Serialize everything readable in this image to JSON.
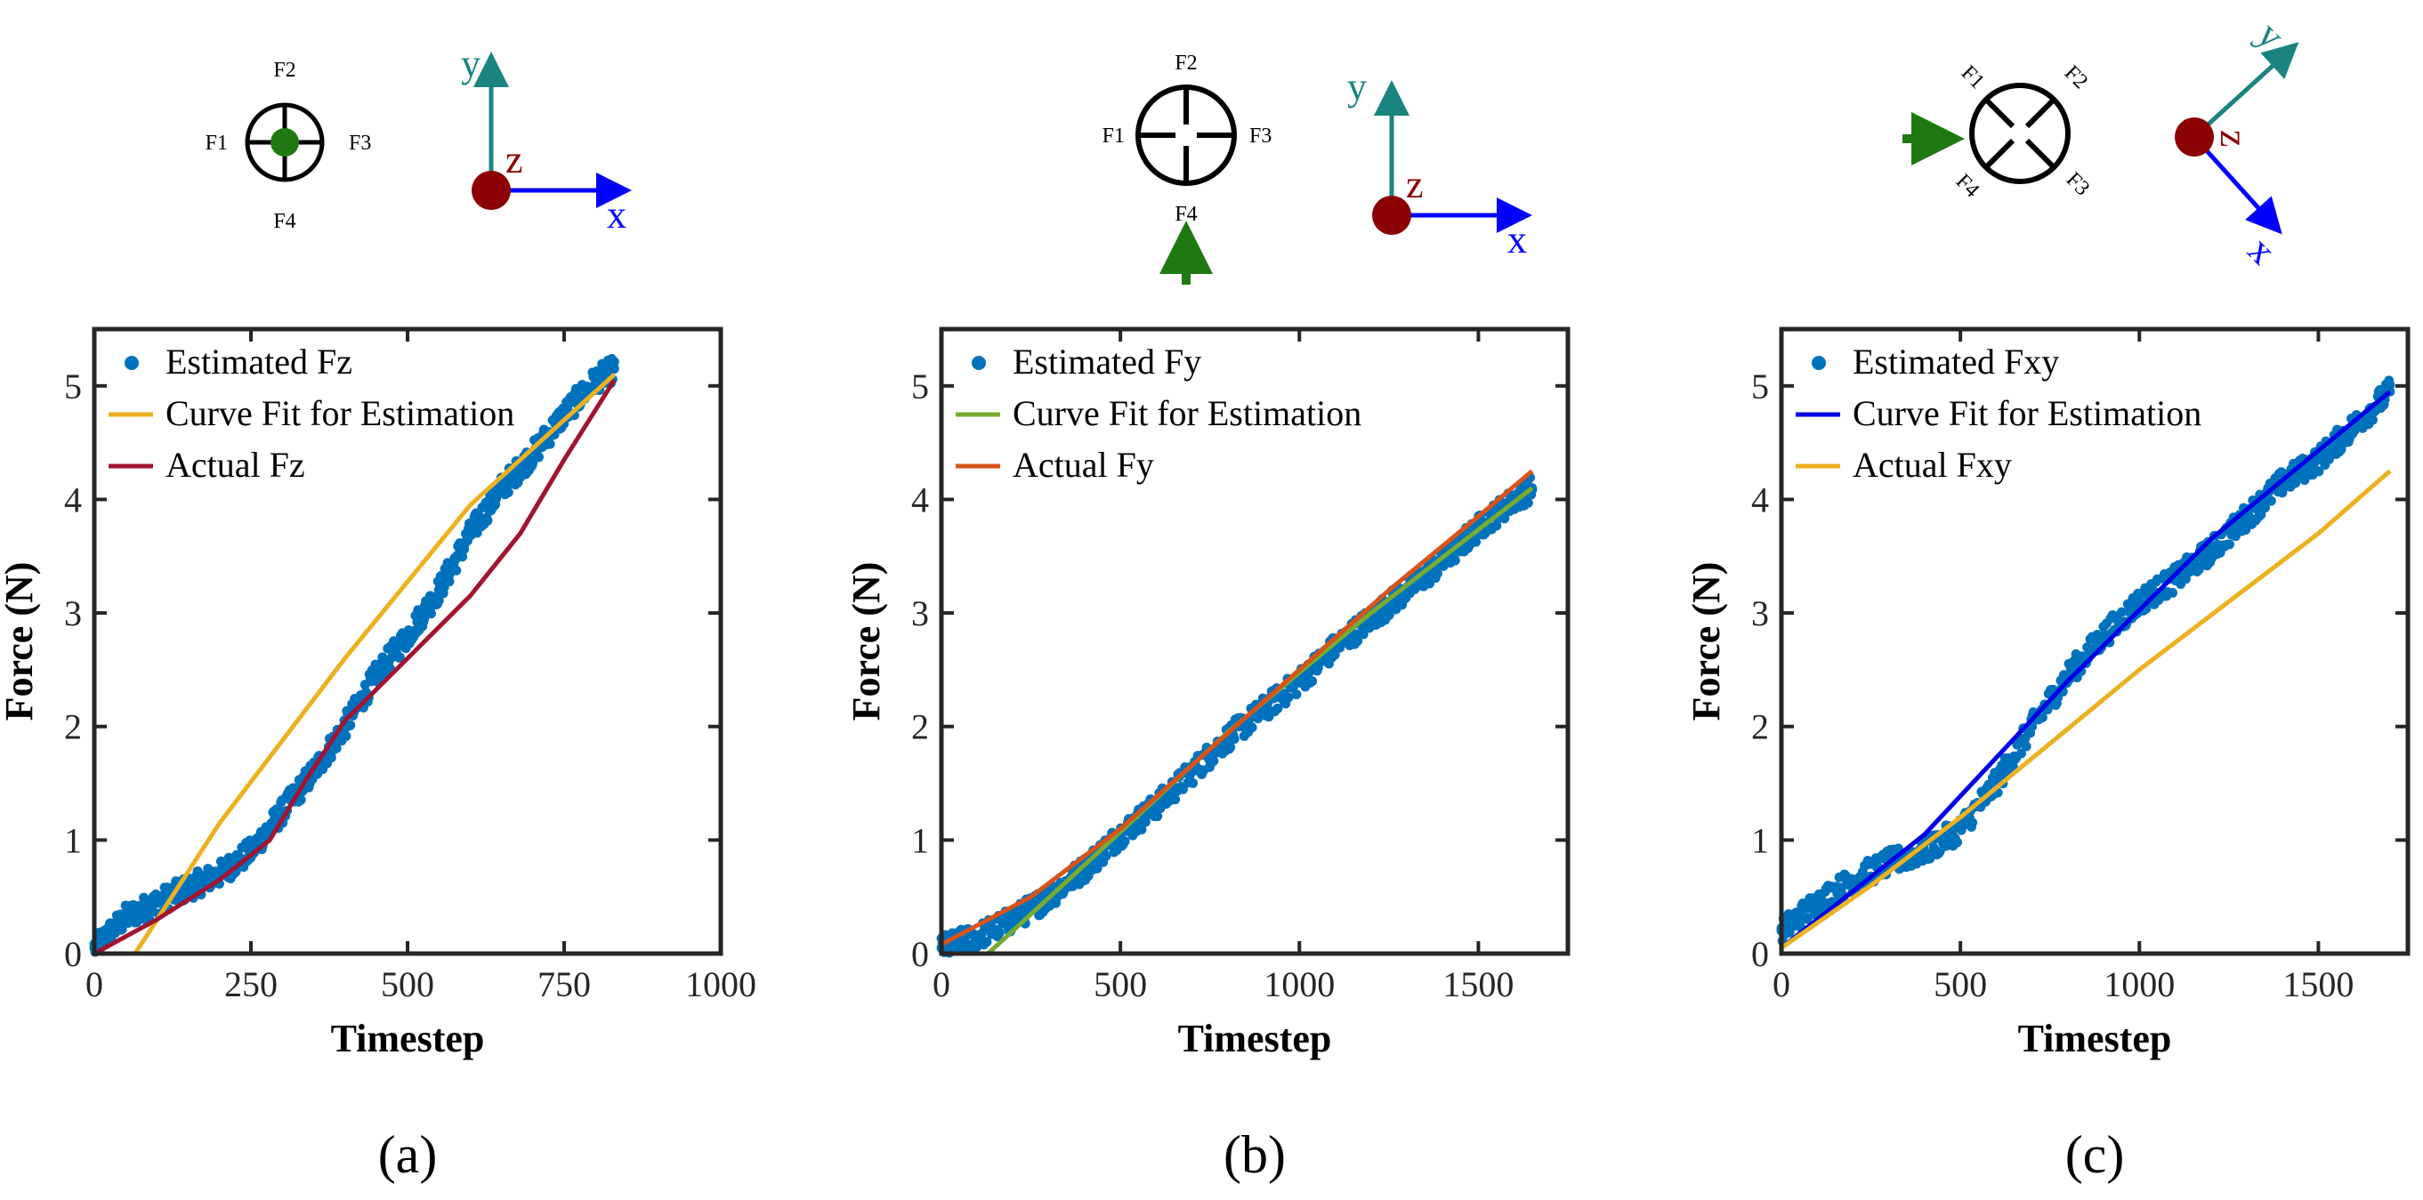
{
  "colors": {
    "axis": "#262626",
    "scatter": "#0072BD",
    "teal": "#1A8480",
    "darkred": "#8B0000",
    "blue": "#0000FF",
    "green": "#1E7A10",
    "orange": "#EDB120",
    "maroon": "#A2142F",
    "lightgreen": "#77AC30",
    "redorange": "#D95319",
    "brightblue": "#0000E6"
  },
  "chart_data": [
    {
      "type": "line",
      "panel_label": "(a)",
      "xlabel": "Timestep",
      "ylabel": "Force (N)",
      "xlim": [
        0,
        1000
      ],
      "ylim": [
        0,
        5.5
      ],
      "xticks": [
        0,
        250,
        500,
        750,
        1000
      ],
      "xtick_labels": [
        "0",
        "250",
        "500",
        "750",
        "1000"
      ],
      "yticks": [
        0,
        1,
        2,
        3,
        4,
        5
      ],
      "ytick_labels": [
        "0",
        "1",
        "2",
        "3",
        "4",
        "5"
      ],
      "series": [
        {
          "name": "Estimated Fz",
          "kind": "scatter",
          "color": "#0072BD",
          "x": [
            0,
            50,
            100,
            150,
            200,
            250,
            300,
            350,
            400,
            450,
            500,
            550,
            600,
            650,
            700,
            750,
            800,
            830
          ],
          "y": [
            0.05,
            0.32,
            0.45,
            0.58,
            0.7,
            0.9,
            1.25,
            1.6,
            2.0,
            2.45,
            2.8,
            3.2,
            3.7,
            4.1,
            4.4,
            4.75,
            5.05,
            5.15
          ]
        },
        {
          "name": "Curve Fit for Estimation",
          "kind": "line",
          "color": "#EDB120",
          "x": [
            65,
            200,
            400,
            600,
            830
          ],
          "y": [
            0.0,
            1.15,
            2.6,
            3.95,
            5.1
          ]
        },
        {
          "name": "Actual Fz",
          "kind": "line",
          "color": "#A2142F",
          "x": [
            0,
            100,
            200,
            280,
            340,
            400,
            500,
            600,
            680,
            750,
            830
          ],
          "y": [
            0.0,
            0.3,
            0.65,
            1.0,
            1.55,
            2.05,
            2.6,
            3.15,
            3.7,
            4.35,
            5.05
          ]
        }
      ],
      "legend": [
        "Estimated Fz",
        "Curve Fit for Estimation",
        "Actual Fz"
      ],
      "legend_position": "top-left"
    },
    {
      "type": "line",
      "panel_label": "(b)",
      "xlabel": "Timestep",
      "ylabel": "Force (N)",
      "xlim": [
        0,
        1750
      ],
      "ylim": [
        0,
        5.5
      ],
      "xticks": [
        0,
        500,
        1000,
        1500
      ],
      "xtick_labels": [
        "0",
        "500",
        "1000",
        "1500"
      ],
      "yticks": [
        0,
        1,
        2,
        3,
        4,
        5
      ],
      "ytick_labels": [
        "0",
        "1",
        "2",
        "3",
        "4",
        "5"
      ],
      "series": [
        {
          "name": "Estimated Fy",
          "kind": "scatter",
          "color": "#0072BD",
          "x": [
            0,
            100,
            200,
            300,
            400,
            500,
            600,
            700,
            800,
            900,
            1000,
            1100,
            1200,
            1300,
            1400,
            1500,
            1600,
            1650
          ],
          "y": [
            0.05,
            0.15,
            0.3,
            0.5,
            0.75,
            1.05,
            1.3,
            1.6,
            1.9,
            2.15,
            2.4,
            2.7,
            2.95,
            3.2,
            3.45,
            3.75,
            4.0,
            4.1
          ]
        },
        {
          "name": "Curve Fit for Estimation",
          "kind": "line",
          "color": "#77AC30",
          "x": [
            130,
            400,
            800,
            1200,
            1650
          ],
          "y": [
            0.0,
            0.78,
            1.95,
            3.0,
            4.1
          ]
        },
        {
          "name": "Actual Fy",
          "kind": "line",
          "color": "#D95319",
          "x": [
            0,
            250,
            500,
            750,
            1000,
            1250,
            1500,
            1650
          ],
          "y": [
            0.08,
            0.5,
            1.1,
            1.8,
            2.5,
            3.2,
            3.85,
            4.25
          ]
        }
      ],
      "legend": [
        "Estimated Fy",
        "Curve Fit for Estimation",
        "Actual Fy"
      ],
      "legend_position": "top-left"
    },
    {
      "type": "line",
      "panel_label": "(c)",
      "xlabel": "Timestep",
      "ylabel": "Force (N)",
      "xlim": [
        0,
        1750
      ],
      "ylim": [
        0,
        5.5
      ],
      "xticks": [
        0,
        500,
        1000,
        1500
      ],
      "xtick_labels": [
        "0",
        "500",
        "1000",
        "1500"
      ],
      "yticks": [
        0,
        1,
        2,
        3,
        4,
        5
      ],
      "ytick_labels": [
        "0",
        "1",
        "2",
        "3",
        "4",
        "5"
      ],
      "series": [
        {
          "name": "Estimated Fxy",
          "kind": "scatter",
          "color": "#0072BD",
          "x": [
            0,
            100,
            200,
            300,
            400,
            500,
            600,
            700,
            800,
            900,
            1000,
            1100,
            1200,
            1300,
            1400,
            1500,
            1600,
            1700
          ],
          "y": [
            0.2,
            0.45,
            0.65,
            0.8,
            0.9,
            1.1,
            1.5,
            2.0,
            2.45,
            2.8,
            3.1,
            3.3,
            3.55,
            3.85,
            4.15,
            4.35,
            4.65,
            4.95
          ]
        },
        {
          "name": "Curve Fit for Estimation",
          "kind": "line",
          "color": "#0000E6",
          "x": [
            0,
            400,
            800,
            1200,
            1700
          ],
          "y": [
            0.05,
            1.05,
            2.4,
            3.65,
            4.95
          ]
        },
        {
          "name": "Actual Fxy",
          "kind": "line",
          "color": "#EDB120",
          "x": [
            0,
            250,
            500,
            750,
            1000,
            1250,
            1500,
            1700
          ],
          "y": [
            0.05,
            0.6,
            1.2,
            1.85,
            2.5,
            3.1,
            3.7,
            4.25
          ]
        }
      ],
      "legend": [
        "Estimated Fxy",
        "Curve Fit for Estimation",
        "Actual Fxy"
      ],
      "legend_position": "top-left"
    }
  ],
  "schematics": [
    {
      "sensor_labels": [
        "F1",
        "F2",
        "F3",
        "F4"
      ],
      "axes": {
        "x": "x",
        "y": "y",
        "z": "z"
      }
    },
    {
      "sensor_labels": [
        "F1",
        "F2",
        "F3",
        "F4"
      ],
      "axes": {
        "x": "x",
        "y": "y",
        "z": "z"
      }
    },
    {
      "sensor_labels": [
        "F1",
        "F2",
        "F3",
        "F4"
      ],
      "axes": {
        "x": "x",
        "y": "y",
        "z": "z"
      }
    }
  ]
}
